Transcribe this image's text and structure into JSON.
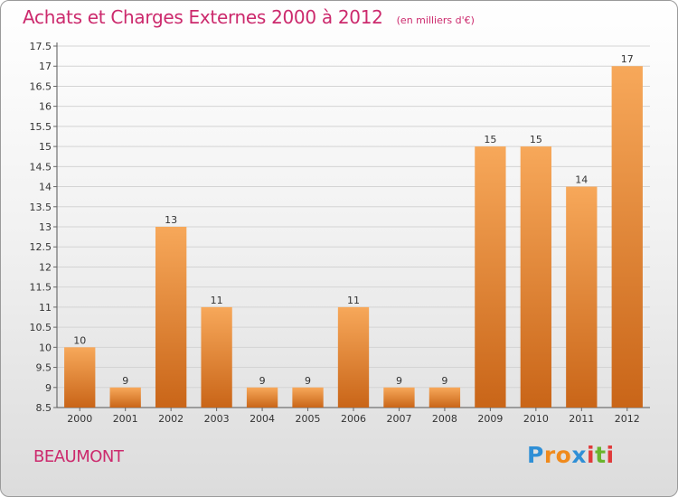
{
  "title": "Achats et Charges Externes 2000 à 2012",
  "unit_note": "(en milliers d'€)",
  "commune": "BEAUMONT",
  "logo": {
    "text": "Proxiti",
    "letters": [
      "P",
      "r",
      "o",
      "x",
      "i",
      "t",
      "i"
    ],
    "colors": [
      "#2f8fd6",
      "#f08a1c",
      "#f08a1c",
      "#2f8fd6",
      "#e03a3a",
      "#6ab42d",
      "#e03a3a"
    ]
  },
  "colors": {
    "accent": "#cc2a6d",
    "bar_top": "#f7a85a",
    "bar_bottom": "#c96518",
    "grid": "#d4d4d4"
  },
  "chart_data": {
    "type": "bar",
    "title": "Achats et Charges Externes 2000 à 2012",
    "xlabel": "",
    "ylabel": "(en milliers d'€)",
    "categories": [
      "2000",
      "2001",
      "2002",
      "2003",
      "2004",
      "2005",
      "2006",
      "2007",
      "2008",
      "2009",
      "2010",
      "2011",
      "2012"
    ],
    "values": [
      10,
      9,
      13,
      11,
      9,
      9,
      11,
      9,
      9,
      15,
      15,
      14,
      17
    ],
    "ylim": [
      8.5,
      17.5
    ],
    "yticks": [
      8.5,
      9,
      9.5,
      10,
      10.5,
      11,
      11.5,
      12,
      12.5,
      13,
      13.5,
      14,
      14.5,
      15,
      15.5,
      16,
      16.5,
      17,
      17.5
    ],
    "grid": true,
    "legend": "none"
  }
}
